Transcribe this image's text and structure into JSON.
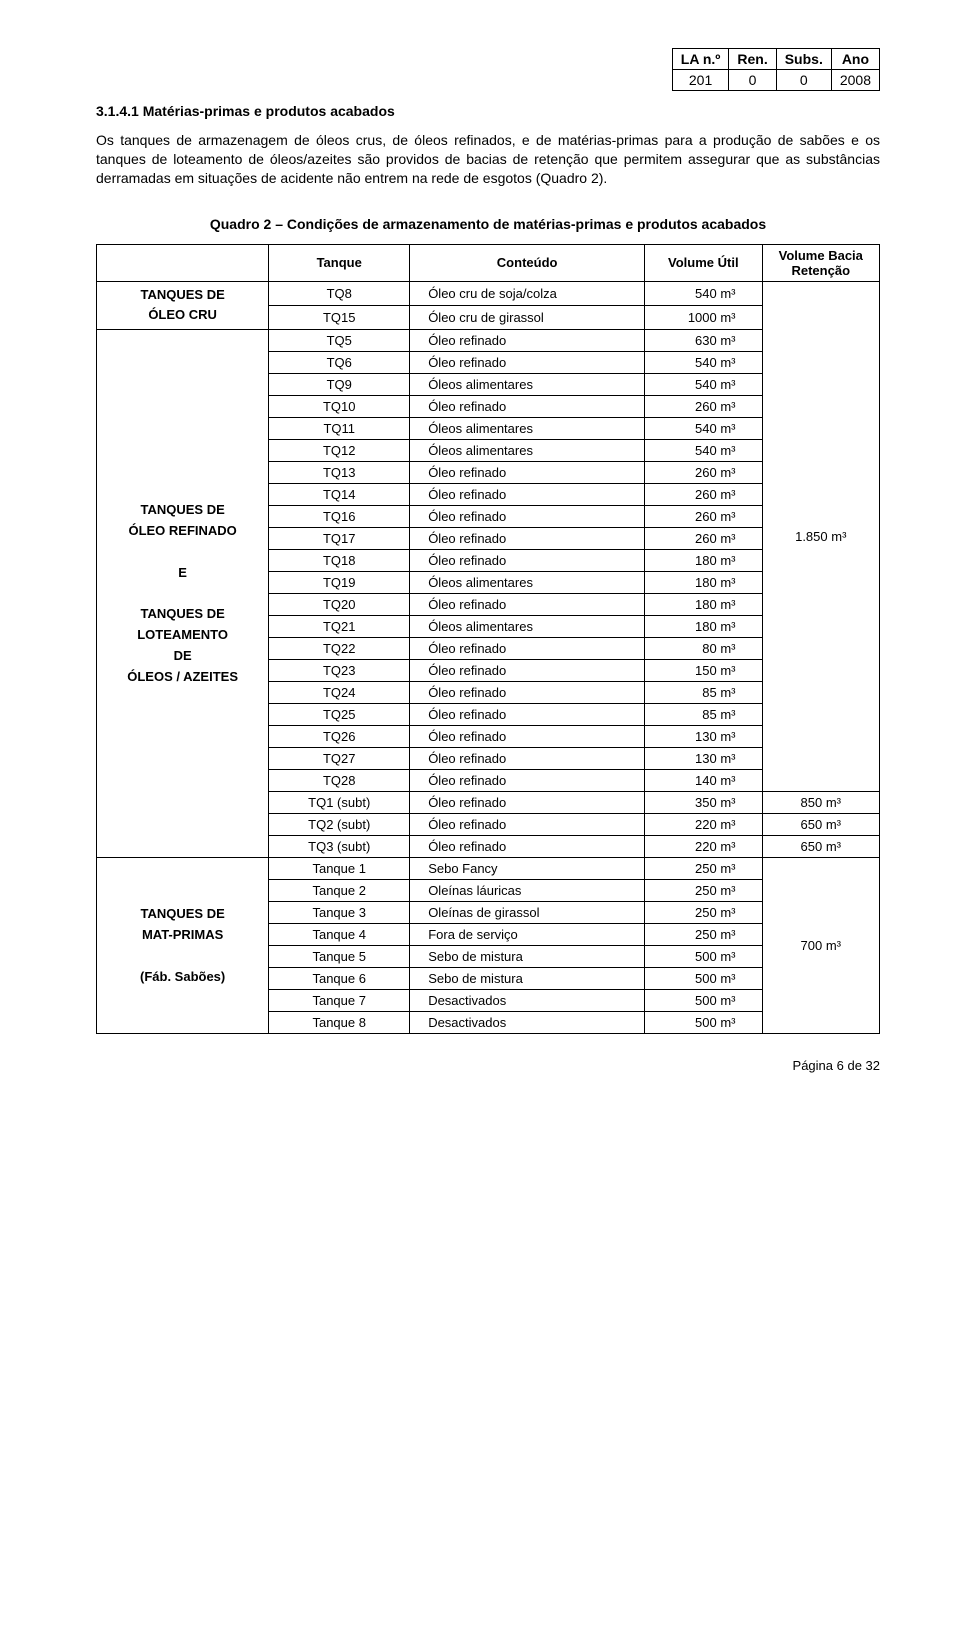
{
  "topbox": {
    "headers": [
      "LA n.º",
      "Ren.",
      "Subs.",
      "Ano"
    ],
    "values": [
      "201",
      "0",
      "0",
      "2008"
    ]
  },
  "heading": "3.1.4.1 Matérias-primas e produtos acabados",
  "paragraph": "Os tanques de armazenagem de óleos crus, de óleos refinados, e de matérias-primas para a produção de sabões e os tanques de loteamento de óleos/azeites são providos de bacias de retenção que permitem assegurar que as substâncias derramadas em situações de acidente não entrem na rede de esgotos (Quadro 2).",
  "table": {
    "caption": "Quadro 2 – Condições de armazenamento de matérias-primas e produtos acabados",
    "columns": [
      "Tanque",
      "Conteúdo",
      "Volume Útil",
      "Volume Bacia Retenção"
    ],
    "groups": [
      {
        "label": "TANQUES DE\nÓLEO CRU",
        "rows": [
          {
            "tank": "TQ8",
            "content": "Óleo cru de soja/colza",
            "vol": "540 m³"
          },
          {
            "tank": "TQ15",
            "content": "Óleo cru de girassol",
            "vol": "1000 m³"
          }
        ]
      },
      {
        "label": "TANQUES DE\nÓLEO REFINADO\n\nE\n\nTANQUES DE\nLOTEAMENTO\nDE\nÓLEOS / AZEITES",
        "rows": [
          {
            "tank": "TQ5",
            "content": "Óleo refinado",
            "vol": "630 m³"
          },
          {
            "tank": "TQ6",
            "content": "Óleo refinado",
            "vol": "540 m³"
          },
          {
            "tank": "TQ9",
            "content": "Óleos alimentares",
            "vol": "540 m³"
          },
          {
            "tank": "TQ10",
            "content": "Óleo refinado",
            "vol": "260 m³"
          },
          {
            "tank": "TQ11",
            "content": "Óleos alimentares",
            "vol": "540 m³"
          },
          {
            "tank": "TQ12",
            "content": "Óleos alimentares",
            "vol": "540 m³"
          },
          {
            "tank": "TQ13",
            "content": "Óleo refinado",
            "vol": "260 m³"
          },
          {
            "tank": "TQ14",
            "content": "Óleo refinado",
            "vol": "260 m³"
          },
          {
            "tank": "TQ16",
            "content": "Óleo refinado",
            "vol": "260 m³"
          },
          {
            "tank": "TQ17",
            "content": "Óleo refinado",
            "vol": "260 m³"
          },
          {
            "tank": "TQ18",
            "content": "Óleo refinado",
            "vol": "180 m³"
          },
          {
            "tank": "TQ19",
            "content": "Óleos alimentares",
            "vol": "180 m³"
          },
          {
            "tank": "TQ20",
            "content": "Óleo refinado",
            "vol": "180 m³"
          },
          {
            "tank": "TQ21",
            "content": "Óleos alimentares",
            "vol": "180 m³"
          },
          {
            "tank": "TQ22",
            "content": "Óleo refinado",
            "vol": "80 m³"
          },
          {
            "tank": "TQ23",
            "content": "Óleo refinado",
            "vol": "150 m³"
          },
          {
            "tank": "TQ24",
            "content": "Óleo refinado",
            "vol": "85 m³"
          },
          {
            "tank": "TQ25",
            "content": "Óleo refinado",
            "vol": "85 m³"
          },
          {
            "tank": "TQ26",
            "content": "Óleo refinado",
            "vol": "130 m³"
          },
          {
            "tank": "TQ27",
            "content": "Óleo refinado",
            "vol": "130 m³"
          },
          {
            "tank": "TQ28",
            "content": "Óleo refinado",
            "vol": "140 m³"
          }
        ]
      }
    ],
    "retention_merged": "1.850 m³",
    "subt_rows": [
      {
        "tank": "TQ1 (subt)",
        "content": "Óleo refinado",
        "vol": "350 m³",
        "ret": "850 m³"
      },
      {
        "tank": "TQ2 (subt)",
        "content": "Óleo refinado",
        "vol": "220 m³",
        "ret": "650 m³"
      },
      {
        "tank": "TQ3 (subt)",
        "content": "Óleo refinado",
        "vol": "220 m³",
        "ret": "650 m³"
      }
    ],
    "matprimas": {
      "label": "TANQUES DE\nMAT-PRIMAS\n\n(Fáb. Sabões)",
      "retention": "700 m³",
      "rows": [
        {
          "tank": "Tanque 1",
          "content": "Sebo Fancy",
          "vol": "250 m³"
        },
        {
          "tank": "Tanque 2",
          "content": "Oleínas láuricas",
          "vol": "250 m³"
        },
        {
          "tank": "Tanque 3",
          "content": "Oleínas de girassol",
          "vol": "250 m³"
        },
        {
          "tank": "Tanque 4",
          "content": "Fora de serviço",
          "vol": "250 m³"
        },
        {
          "tank": "Tanque 5",
          "content": "Sebo de mistura",
          "vol": "500 m³"
        },
        {
          "tank": "Tanque 6",
          "content": "Sebo de mistura",
          "vol": "500 m³"
        },
        {
          "tank": "Tanque 7",
          "content": "Desactivados",
          "vol": "500 m³"
        },
        {
          "tank": "Tanque 8",
          "content": "Desactivados",
          "vol": "500 m³"
        }
      ]
    }
  },
  "footer": "Página 6 de 32"
}
